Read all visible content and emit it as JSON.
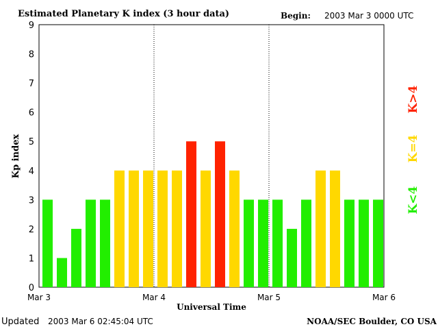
{
  "chart_data": {
    "type": "bar",
    "title": "Estimated Planetary K index (3 hour data)",
    "begin_label": "Begin:",
    "begin_value": "2003 Mar 3 0000 UTC",
    "xlabel": "Universal Time",
    "ylabel": "Kp index",
    "ylim": [
      0,
      9
    ],
    "yticks": [
      "0",
      "1",
      "2",
      "3",
      "4",
      "5",
      "6",
      "7",
      "8",
      "9"
    ],
    "xticks": [
      "Mar 3",
      "Mar 4",
      "Mar 5",
      "Mar 6"
    ],
    "values": [
      3,
      1,
      2,
      3,
      3,
      4,
      4,
      4,
      4,
      4,
      5,
      4,
      5,
      4,
      3,
      3,
      3,
      2,
      3,
      4,
      4,
      3,
      3,
      3
    ],
    "legend": [
      {
        "label": "K>4",
        "color": "#ff2200"
      },
      {
        "label": "K=4",
        "color": "#ffd800"
      },
      {
        "label": "K<4",
        "color": "#22ee00"
      }
    ],
    "legend_placement": "right"
  },
  "footer": {
    "updated_label": "Updated",
    "updated_value": "2003 Mar  6 02:45:04 UTC",
    "source": "NOAA/SEC Boulder, CO USA"
  }
}
